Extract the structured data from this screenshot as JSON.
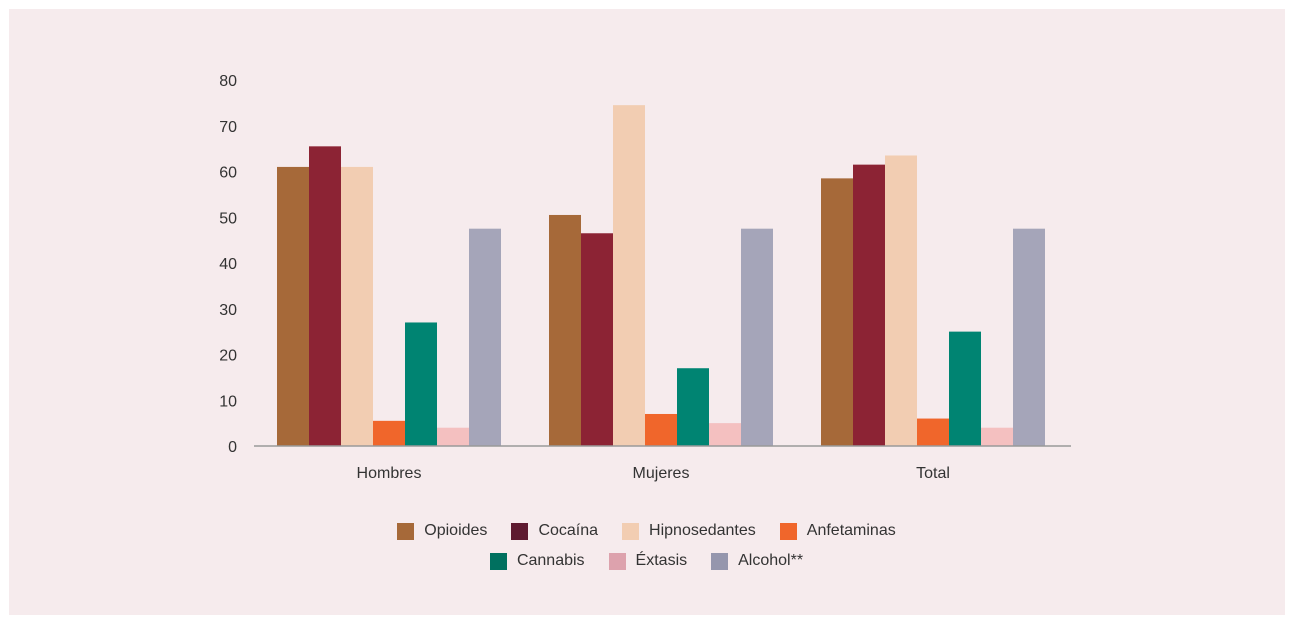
{
  "chart_data": {
    "type": "bar",
    "categories": [
      "Hombres",
      "Mujeres",
      "Total"
    ],
    "ylim": [
      0,
      80
    ],
    "yticks": [
      0,
      10,
      20,
      30,
      40,
      50,
      60,
      70,
      80
    ],
    "grid": false,
    "legend_position": "bottom",
    "series": [
      {
        "name": "Opioides",
        "color": "#a66939",
        "values": [
          61,
          50.5,
          58.5
        ]
      },
      {
        "name": "Cocaína",
        "color": "#8c2334",
        "values": [
          65.5,
          46.5,
          61.5
        ]
      },
      {
        "name": "Hipnosedantes",
        "color": "#f2cdb2",
        "values": [
          61,
          74.5,
          63.5
        ]
      },
      {
        "name": "Anfetaminas",
        "color": "#f0662b",
        "values": [
          5.5,
          7,
          6
        ]
      },
      {
        "name": "Cannabis",
        "color": "#008472",
        "values": [
          27,
          17,
          25
        ]
      },
      {
        "name": "Éxtasis",
        "color": "#f4c0c0",
        "values": [
          4,
          5,
          4
        ]
      },
      {
        "name": "Alcohol**",
        "color": "#a5a5b9",
        "values": [
          47.5,
          47.5,
          47.5
        ]
      }
    ]
  },
  "legend": {
    "rows": [
      [
        {
          "label": "Opioides",
          "color": "#a66939"
        },
        {
          "label": "Cocaína",
          "color": "#5e1a30"
        },
        {
          "label": "Hipnosedantes",
          "color": "#f2cdb2"
        },
        {
          "label": "Anfetaminas",
          "color": "#f0662b"
        }
      ],
      [
        {
          "label": "Cannabis",
          "color": "#00705f"
        },
        {
          "label": "Éxtasis",
          "color": "#dda2ad"
        },
        {
          "label": "Alcohol**",
          "color": "#9596ad"
        }
      ]
    ]
  }
}
